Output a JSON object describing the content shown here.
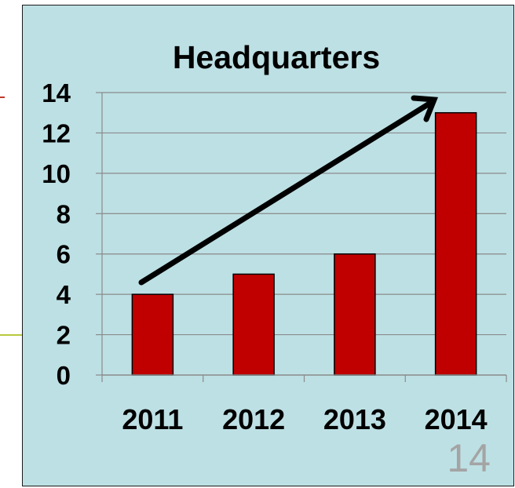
{
  "chart_data": {
    "type": "bar",
    "title": "Headquarters",
    "categories": [
      "2011",
      "2012",
      "2013",
      "2014"
    ],
    "values": [
      4,
      5,
      6,
      13
    ],
    "yticks": [
      0,
      2,
      4,
      6,
      8,
      10,
      12,
      14
    ],
    "ylim": [
      0,
      14
    ],
    "grid": true,
    "legend": "none",
    "annotation": "trend-arrow",
    "colors": {
      "bar": "#c00000",
      "bar_outline": "#000000",
      "background": "#bde0e4",
      "grid": "#8a8a8a",
      "arrow": "#000000"
    }
  },
  "slide": {
    "page_number": "14"
  },
  "decor": {
    "left_line_color": "#b8c93c",
    "left_tick_color": "#c0392b"
  }
}
